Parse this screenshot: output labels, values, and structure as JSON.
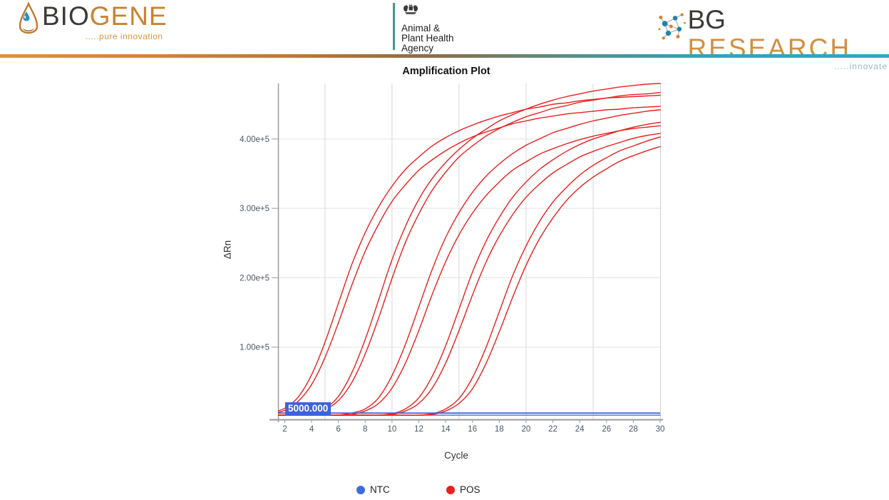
{
  "header": {
    "biogene": {
      "name_dark": "BIO",
      "name_accent": "GENE",
      "tagline": ".....pure innovation"
    },
    "apha": {
      "line1": "Animal &",
      "line2": "Plant Health",
      "line3": "Agency"
    },
    "bg_research": {
      "name_dark": "BG",
      "name_accent": "RESEARCH",
      "tagline": ".....innovate"
    }
  },
  "colors": {
    "pos_red": "#E8201E",
    "ntc_blue": "#3F6BE0",
    "threshold_blue": "#3E62DC",
    "accent_orange": "#D28E44",
    "accent_teal": "#3D9B8F"
  },
  "chart_data": {
    "type": "line",
    "title": "Amplification Plot",
    "xlabel": "Cycle",
    "ylabel": "ΔRn",
    "xlim": [
      1,
      30
    ],
    "ylim": [
      0,
      480000
    ],
    "grid": true,
    "legend_position": "bottom",
    "x_tick_values": [
      2,
      4,
      6,
      8,
      10,
      12,
      14,
      16,
      18,
      20,
      22,
      24,
      26,
      28,
      30
    ],
    "grid_x": [
      5,
      10,
      15,
      20,
      25
    ],
    "y_tick_values": [
      100000,
      200000,
      300000,
      400000
    ],
    "y_tick_labels": [
      "1.00e+5",
      "2.00e+5",
      "3.00e+5",
      "4.00e+5"
    ],
    "threshold": {
      "value": 5000,
      "label": "5000.000",
      "color": "#3E62DC"
    },
    "legend": [
      {
        "label": "NTC",
        "color": "#3F6BE0"
      },
      {
        "label": "POS",
        "color": "#E8201E"
      }
    ],
    "cycles": [
      1,
      2,
      3,
      4,
      5,
      6,
      7,
      8,
      9,
      10,
      11,
      12,
      13,
      14,
      15,
      16,
      17,
      18,
      19,
      20,
      21,
      22,
      23,
      24,
      25,
      26,
      27,
      28,
      29,
      30
    ],
    "values_scale": 1000,
    "series": [
      {
        "name": "NTC",
        "color": "#3F6BE0",
        "values": [
          2,
          2,
          2,
          2,
          2,
          2,
          2,
          2,
          2,
          2,
          2,
          2,
          2,
          2,
          2,
          2,
          2,
          2,
          2,
          2,
          2,
          2,
          2,
          2,
          2,
          2,
          2,
          2,
          2,
          2
        ]
      },
      {
        "name": "POS",
        "color": "#E8201E",
        "values": [
          5,
          12,
          28,
          60,
          107,
          163,
          219,
          265,
          302,
          332,
          356,
          374,
          390,
          402,
          412,
          420,
          427,
          433,
          438,
          443,
          446,
          450,
          452,
          455,
          457,
          459,
          460,
          461,
          462,
          463
        ]
      },
      {
        "name": "POS",
        "color": "#E8201E",
        "values": [
          4,
          9,
          22,
          46,
          85,
          135,
          189,
          238,
          277,
          310,
          334,
          355,
          370,
          383,
          394,
          403,
          410,
          416,
          422,
          426,
          430,
          433,
          436,
          438,
          440,
          442,
          443,
          445,
          446,
          447
        ]
      },
      {
        "name": "POS",
        "color": "#E8201E",
        "values": [
          2,
          2,
          3,
          5,
          12,
          29,
          63,
          111,
          168,
          226,
          274,
          313,
          343,
          366,
          385,
          401,
          414,
          426,
          435,
          443,
          450,
          456,
          461,
          465,
          469,
          472,
          475,
          477,
          479,
          480
        ]
      },
      {
        "name": "POS",
        "color": "#E8201E",
        "values": [
          2,
          2,
          2,
          4,
          10,
          23,
          49,
          90,
          142,
          199,
          251,
          292,
          326,
          352,
          374,
          390,
          404,
          415,
          424,
          432,
          438,
          444,
          448,
          453,
          456,
          459,
          462,
          464,
          465,
          467
        ]
      },
      {
        "name": "POS",
        "color": "#E8201E",
        "values": [
          2,
          2,
          2,
          2,
          2,
          2,
          5,
          11,
          27,
          59,
          104,
          158,
          212,
          258,
          294,
          323,
          346,
          364,
          379,
          391,
          400,
          409,
          415,
          421,
          426,
          430,
          434,
          437,
          440,
          442
        ]
      },
      {
        "name": "POS",
        "color": "#E8201E",
        "values": [
          2,
          2,
          2,
          2,
          2,
          2,
          3,
          8,
          19,
          41,
          77,
          124,
          176,
          223,
          262,
          293,
          318,
          338,
          355,
          367,
          378,
          386,
          393,
          399,
          404,
          408,
          412,
          415,
          417,
          419
        ]
      },
      {
        "name": "POS",
        "color": "#E8201E",
        "values": [
          2,
          2,
          2,
          2,
          2,
          2,
          2,
          2,
          2,
          4,
          11,
          27,
          58,
          102,
          155,
          208,
          252,
          287,
          316,
          338,
          356,
          370,
          382,
          392,
          400,
          406,
          412,
          417,
          421,
          424
        ]
      },
      {
        "name": "POS",
        "color": "#E8201E",
        "values": [
          2,
          2,
          2,
          2,
          2,
          2,
          2,
          2,
          2,
          3,
          8,
          19,
          41,
          77,
          124,
          175,
          222,
          260,
          291,
          316,
          335,
          351,
          363,
          374,
          382,
          389,
          395,
          401,
          405,
          408
        ]
      },
      {
        "name": "POS",
        "color": "#E8201E",
        "values": [
          2,
          2,
          2,
          2,
          2,
          2,
          2,
          2,
          2,
          2,
          2,
          2,
          4,
          11,
          26,
          56,
          99,
          151,
          203,
          246,
          281,
          309,
          330,
          348,
          362,
          373,
          383,
          390,
          397,
          403
        ]
      },
      {
        "name": "POS",
        "color": "#E8201E",
        "values": [
          2,
          2,
          2,
          2,
          2,
          2,
          2,
          2,
          2,
          2,
          2,
          2,
          3,
          8,
          19,
          40,
          76,
          122,
          172,
          218,
          256,
          286,
          311,
          330,
          345,
          357,
          368,
          376,
          383,
          389
        ]
      }
    ]
  }
}
